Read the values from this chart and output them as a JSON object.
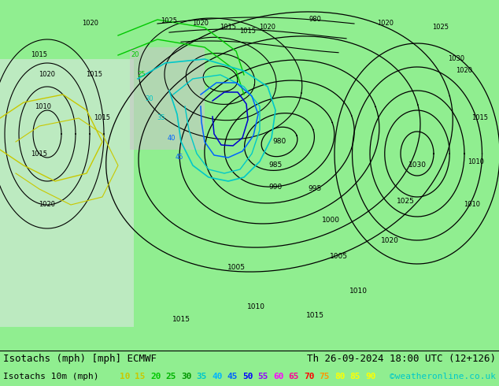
{
  "title_line1": "Isotachs (mph) [mph] ECMWF",
  "title_line2": "Th 26-09-2024 18:00 UTC (12+126)",
  "legend_label": "Isotachs 10m (mph)",
  "legend_values": [
    "10",
    "15",
    "20",
    "25",
    "30",
    "35",
    "40",
    "45",
    "50",
    "55",
    "60",
    "65",
    "70",
    "75",
    "80",
    "85",
    "90"
  ],
  "legend_colors": [
    "#c8c800",
    "#c8c800",
    "#00c800",
    "#00b400",
    "#009600",
    "#00c8c8",
    "#00b4ff",
    "#0064ff",
    "#0000ff",
    "#9600ff",
    "#ff00ff",
    "#ff0096",
    "#ff0000",
    "#ff9600",
    "#ffff00",
    "#ffff00",
    "#ffff00"
  ],
  "copyright": "©weatheronline.co.uk",
  "copyright_color": "#00c8c8",
  "bg_color": "#90ee90",
  "white_color": "#f0f0f0",
  "separator_color": "#000000",
  "title_fontsize": 9,
  "legend_fontsize": 8,
  "fig_width": 6.34,
  "fig_height": 4.9,
  "dpi": 100,
  "map_bg": "#90ee90",
  "isobar_color": "#000000",
  "isotach_colors": {
    "green_lo": "#c8ff00",
    "green_mid": "#00c800",
    "cyan": "#00c8c8",
    "blue": "#0064ff",
    "darkblue": "#0000cd",
    "violet": "#8000ff",
    "grey": "#808080"
  }
}
